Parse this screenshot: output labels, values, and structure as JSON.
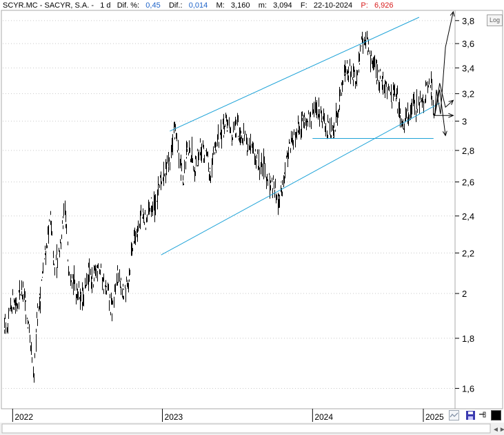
{
  "header": {
    "ticker": "SCYR.MC - SACYR, S.A. -",
    "interval": "1 d",
    "dif_pct_label": "Dif. %:",
    "dif_pct_value": "0,45",
    "dif_label": "Dif.:",
    "dif_value": "0,014",
    "max_label": "M:",
    "max_value": "3,160",
    "min_label": "m:",
    "min_value": "3,094",
    "date_label": "F:",
    "date_value": "22-10-2024",
    "p_label": "P:",
    "p_value": "6,926"
  },
  "controls": {
    "log_label": "Log"
  },
  "colors": {
    "price": "#000000",
    "channel": "#1ea3d8",
    "grid": "#c8c8c8",
    "value_blue": "#1e63c8",
    "value_red": "#d81a1a"
  },
  "chart_data": {
    "type": "line",
    "title": "SCYR.MC - SACYR, S.A.",
    "xlabel": "",
    "ylabel": "",
    "ylim": [
      1.53,
      3.88
    ],
    "y_scale": "log",
    "y_ticks": [
      "3,8",
      "3,6",
      "3,4",
      "3,2",
      "3",
      "2,8",
      "2,6",
      "2,4",
      "2,2",
      "2",
      "1,8",
      "1,6"
    ],
    "x_ticks": [
      "2022",
      "2023",
      "2024",
      "2025"
    ],
    "grid": "horizontal dotted",
    "series": [
      {
        "style": "daily bars",
        "x": [
          "2021-12-13",
          "2021-12-20",
          "2021-12-31",
          "2022-01-12",
          "2022-01-24",
          "2022-02-02",
          "2022-02-11",
          "2022-02-23",
          "2022-03-02",
          "2022-03-07",
          "2022-03-14",
          "2022-03-23",
          "2022-04-04",
          "2022-04-14",
          "2022-04-28",
          "2022-05-09",
          "2022-05-18",
          "2022-06-01",
          "2022-06-14",
          "2022-06-24",
          "2022-07-06",
          "2022-07-18",
          "2022-07-29",
          "2022-08-10",
          "2022-08-22",
          "2022-09-01",
          "2022-09-16",
          "2022-09-29",
          "2022-10-10",
          "2022-10-17",
          "2022-10-27",
          "2022-11-10",
          "2022-11-22",
          "2022-12-05",
          "2022-12-20",
          "2022-12-30",
          "2023-01-11",
          "2023-01-20",
          "2023-01-31",
          "2023-02-08",
          "2023-02-21",
          "2023-03-02",
          "2023-03-13",
          "2023-03-21",
          "2023-04-03",
          "2023-04-17",
          "2023-04-28",
          "2023-05-12",
          "2023-05-24",
          "2023-06-07",
          "2023-06-20",
          "2023-07-03",
          "2023-07-14",
          "2023-07-26",
          "2023-08-09",
          "2023-08-23",
          "2023-09-04",
          "2023-09-15",
          "2023-09-29",
          "2023-10-13",
          "2023-10-24",
          "2023-11-03",
          "2023-11-17",
          "2023-11-30",
          "2023-12-14",
          "2023-12-27",
          "2024-01-09",
          "2024-01-23",
          "2024-02-06",
          "2024-02-15",
          "2024-02-21",
          "2024-03-04",
          "2024-03-14",
          "2024-03-26",
          "2024-04-09",
          "2024-04-18",
          "2024-04-29",
          "2024-05-10",
          "2024-05-23",
          "2024-06-06",
          "2024-06-20",
          "2024-06-28",
          "2024-07-08",
          "2024-07-18",
          "2024-07-31",
          "2024-08-07",
          "2024-08-20",
          "2024-09-03",
          "2024-09-17",
          "2024-10-01",
          "2024-10-14",
          "2024-10-22"
        ],
        "values": [
          1.88,
          1.8,
          1.97,
          1.95,
          2.03,
          1.95,
          1.82,
          1.62,
          1.9,
          1.95,
          2.05,
          2.2,
          2.38,
          2.1,
          2.25,
          2.43,
          2.15,
          2.05,
          2.0,
          1.98,
          2.1,
          2.05,
          2.15,
          2.05,
          2.0,
          1.92,
          2.1,
          1.98,
          2.05,
          2.2,
          2.3,
          2.4,
          2.37,
          2.45,
          2.5,
          2.62,
          2.7,
          2.73,
          2.93,
          2.8,
          2.62,
          2.78,
          2.8,
          2.7,
          2.82,
          2.76,
          2.65,
          2.85,
          2.93,
          2.98,
          2.9,
          2.95,
          2.92,
          2.86,
          2.78,
          2.72,
          2.7,
          2.62,
          2.56,
          2.51,
          2.62,
          2.8,
          2.9,
          2.98,
          3.02,
          3.0,
          3.1,
          3.05,
          2.95,
          2.92,
          2.88,
          3.12,
          3.3,
          3.4,
          3.35,
          3.28,
          3.6,
          3.66,
          3.45,
          3.36,
          3.3,
          3.24,
          3.2,
          3.18,
          3.08,
          2.93,
          3.05,
          3.1,
          3.15,
          3.2,
          3.3,
          3.08
        ]
      }
    ],
    "channel_upper": {
      "x": [
        "2023-01-20",
        "2024-09-17"
      ],
      "y": [
        2.93,
        3.83
      ]
    },
    "channel_lower": {
      "x": [
        "2022-12-30",
        "2024-11-06"
      ],
      "y": [
        2.19,
        3.13
      ]
    },
    "support_line": {
      "x": [
        "2024-01-02",
        "2024-10-22"
      ],
      "y": [
        2.88,
        2.88
      ]
    },
    "breakout_line": {
      "x": [
        "2024-10-22",
        "2024-12-09"
      ],
      "y": [
        3.04,
        3.04
      ]
    },
    "projection_paths": [
      {
        "x": [
          "2024-10-25",
          "2024-10-29",
          "2024-11-08",
          "2024-11-20",
          "2024-12-09"
        ],
        "y": [
          3.04,
          3.23,
          3.05,
          3.57,
          3.88
        ]
      },
      {
        "x": [
          "2024-10-25",
          "2024-11-06",
          "2024-11-20",
          "2024-12-09"
        ],
        "y": [
          3.04,
          3.28,
          3.1,
          3.15
        ]
      },
      {
        "x": [
          "2024-10-25",
          "2024-11-06",
          "2024-11-20"
        ],
        "y": [
          3.04,
          3.23,
          2.9
        ]
      }
    ]
  }
}
